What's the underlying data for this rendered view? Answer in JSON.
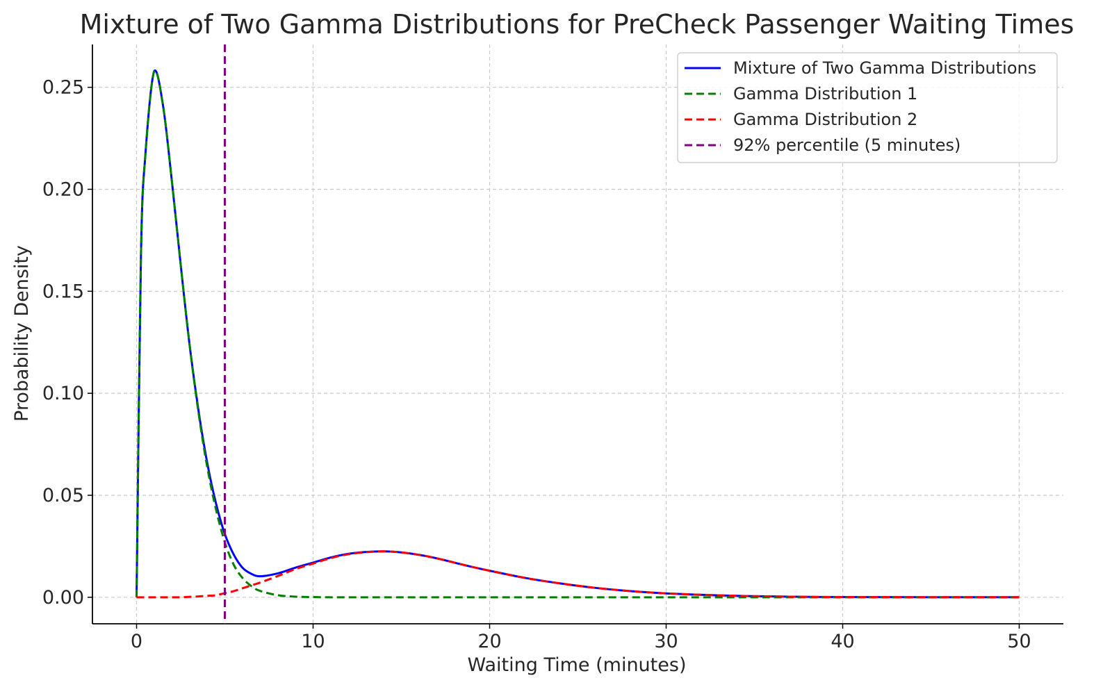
{
  "chart_data": {
    "type": "line",
    "title": "Mixture of Two Gamma Distributions for PreCheck Passenger Waiting Times",
    "xlabel": "Waiting Time (minutes)",
    "ylabel": "Probability Density",
    "xlim": [
      -2.5,
      52.5
    ],
    "ylim": [
      -0.013,
      0.271
    ],
    "xticks": [
      0,
      10,
      20,
      30,
      40,
      50
    ],
    "yticks": [
      0.0,
      0.05,
      0.1,
      0.15,
      0.2,
      0.25
    ],
    "xtick_labels": [
      "0",
      "10",
      "20",
      "30",
      "40",
      "50"
    ],
    "ytick_labels": [
      "0.00",
      "0.05",
      "0.10",
      "0.15",
      "0.20",
      "0.25"
    ],
    "grid": true,
    "legend_position": "upper right",
    "x": [
      0,
      0.25,
      0.5,
      1,
      1.5,
      2,
      2.5,
      3,
      3.5,
      4,
      4.5,
      5,
      5.5,
      6,
      6.5,
      7,
      8,
      9,
      10,
      11,
      12,
      13,
      14,
      15,
      16,
      17,
      18,
      19,
      20,
      22,
      24,
      26,
      28,
      30,
      32,
      34,
      36,
      38,
      40,
      45,
      50
    ],
    "series": [
      {
        "name": "Mixture of Two Gamma Distributions",
        "style": "solid",
        "color": "#0000ff",
        "values": [
          0,
          0.168,
          0.217,
          0.258,
          0.241,
          0.204,
          0.163,
          0.124,
          0.092,
          0.066,
          0.046,
          0.031,
          0.021,
          0.0145,
          0.0115,
          0.0103,
          0.0117,
          0.0145,
          0.017,
          0.0195,
          0.0213,
          0.0222,
          0.0225,
          0.022,
          0.0208,
          0.0191,
          0.017,
          0.0149,
          0.013,
          0.0095,
          0.0068,
          0.0046,
          0.003,
          0.0019,
          0.0012,
          0.0007,
          0.0004,
          0.0002,
          0.0001,
          3e-05,
          1e-05
        ]
      },
      {
        "name": "Gamma Distribution 1",
        "style": "dashed",
        "color": "#008000",
        "values": [
          0,
          0.168,
          0.217,
          0.258,
          0.241,
          0.204,
          0.163,
          0.124,
          0.091,
          0.064,
          0.043,
          0.027,
          0.016,
          0.0095,
          0.0055,
          0.0031,
          0.001,
          0.0003,
          0.0001,
          0,
          0,
          0,
          0,
          0,
          0,
          0,
          0,
          0,
          0,
          0,
          0,
          0,
          0,
          0,
          0,
          0,
          0,
          0,
          0,
          0,
          0
        ]
      },
      {
        "name": "Gamma Distribution 2",
        "style": "dashed",
        "color": "#ff0000",
        "values": [
          0,
          0,
          0,
          0,
          0,
          0,
          0,
          0.0002,
          0.0004,
          0.0007,
          0.001,
          0.002,
          0.003,
          0.0044,
          0.0058,
          0.0072,
          0.0104,
          0.0138,
          0.0165,
          0.0192,
          0.0211,
          0.0221,
          0.0225,
          0.022,
          0.0208,
          0.0191,
          0.017,
          0.0149,
          0.013,
          0.0095,
          0.0068,
          0.0046,
          0.003,
          0.0019,
          0.0012,
          0.0007,
          0.0004,
          0.0002,
          0.0001,
          3e-05,
          1e-05
        ]
      }
    ],
    "vline": {
      "name": "92% percentile (5 minutes)",
      "x": 5,
      "style": "dashed",
      "color": "#800080"
    }
  }
}
